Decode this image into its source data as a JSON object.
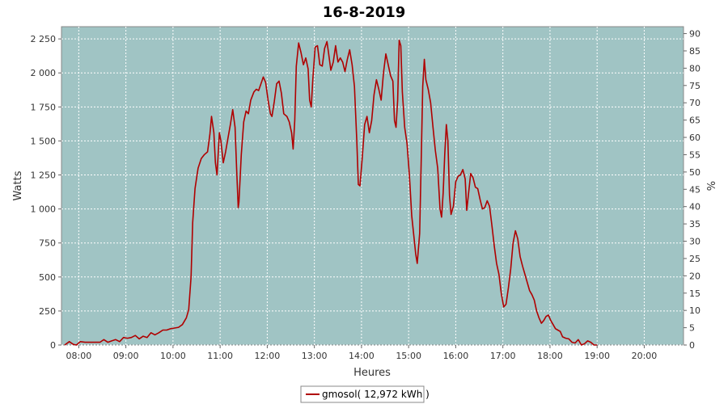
{
  "chart_data": {
    "type": "line",
    "title": "16-8-2019",
    "xlabel": "Heures",
    "ylabel": "Watts",
    "y2label": "%",
    "x_ticks": [
      "08:00",
      "09:00",
      "10:00",
      "11:00",
      "12:00",
      "13:00",
      "14:00",
      "15:00",
      "16:00",
      "17:00",
      "18:00",
      "19:00",
      "20:00"
    ],
    "y_ticks": [
      "0",
      "250",
      "500",
      "750",
      "1 000",
      "1 250",
      "1 500",
      "1 750",
      "2 000",
      "2 250"
    ],
    "y2_ticks": [
      "0",
      "5",
      "10",
      "15",
      "20",
      "25",
      "30",
      "35",
      "40",
      "45",
      "50",
      "55",
      "60",
      "65",
      "70",
      "75",
      "80",
      "85",
      "90"
    ],
    "xlim": [
      "07:38",
      "20:50"
    ],
    "ylim": [
      0,
      2340
    ],
    "y2lim": [
      0,
      92
    ],
    "grid": true,
    "legend_position": "bottom-center",
    "colors": {
      "plot_bg": "#a0c4c4",
      "line": "#b00000",
      "grid": "#ffffff"
    },
    "series": [
      {
        "name": "gmosol( 12,972 kWh )",
        "points": [
          [
            "07:42",
            0
          ],
          [
            "07:48",
            25
          ],
          [
            "07:53",
            5
          ],
          [
            "07:57",
            0
          ],
          [
            "08:02",
            25
          ],
          [
            "08:08",
            20
          ],
          [
            "08:15",
            20
          ],
          [
            "08:22",
            20
          ],
          [
            "08:27",
            20
          ],
          [
            "08:32",
            40
          ],
          [
            "08:37",
            20
          ],
          [
            "08:42",
            30
          ],
          [
            "08:47",
            40
          ],
          [
            "08:52",
            25
          ],
          [
            "08:57",
            55
          ],
          [
            "09:02",
            50
          ],
          [
            "09:07",
            55
          ],
          [
            "09:12",
            70
          ],
          [
            "09:17",
            45
          ],
          [
            "09:22",
            65
          ],
          [
            "09:27",
            55
          ],
          [
            "09:32",
            90
          ],
          [
            "09:37",
            75
          ],
          [
            "09:42",
            90
          ],
          [
            "09:47",
            110
          ],
          [
            "09:52",
            110
          ],
          [
            "09:57",
            120
          ],
          [
            "10:02",
            125
          ],
          [
            "10:07",
            130
          ],
          [
            "10:12",
            150
          ],
          [
            "10:17",
            200
          ],
          [
            "10:20",
            260
          ],
          [
            "10:23",
            500
          ],
          [
            "10:25",
            900
          ],
          [
            "10:28",
            1150
          ],
          [
            "10:32",
            1300
          ],
          [
            "10:36",
            1370
          ],
          [
            "10:40",
            1400
          ],
          [
            "10:44",
            1420
          ],
          [
            "10:47",
            1550
          ],
          [
            "10:49",
            1680
          ],
          [
            "10:52",
            1560
          ],
          [
            "10:54",
            1340
          ],
          [
            "10:56",
            1250
          ],
          [
            "10:59",
            1560
          ],
          [
            "11:01",
            1500
          ],
          [
            "11:04",
            1340
          ],
          [
            "11:07",
            1420
          ],
          [
            "11:10",
            1520
          ],
          [
            "11:13",
            1620
          ],
          [
            "11:16",
            1730
          ],
          [
            "11:19",
            1600
          ],
          [
            "11:21",
            1300
          ],
          [
            "11:23",
            1010
          ],
          [
            "11:24",
            1050
          ],
          [
            "11:27",
            1400
          ],
          [
            "11:30",
            1640
          ],
          [
            "11:33",
            1720
          ],
          [
            "11:36",
            1700
          ],
          [
            "11:39",
            1800
          ],
          [
            "11:43",
            1860
          ],
          [
            "11:46",
            1880
          ],
          [
            "11:49",
            1870
          ],
          [
            "11:52",
            1920
          ],
          [
            "11:55",
            1970
          ],
          [
            "11:58",
            1930
          ],
          [
            "12:01",
            1800
          ],
          [
            "12:04",
            1700
          ],
          [
            "12:06",
            1680
          ],
          [
            "12:09",
            1790
          ],
          [
            "12:12",
            1920
          ],
          [
            "12:15",
            1940
          ],
          [
            "12:18",
            1850
          ],
          [
            "12:21",
            1700
          ],
          [
            "12:25",
            1680
          ],
          [
            "12:28",
            1640
          ],
          [
            "12:31",
            1560
          ],
          [
            "12:33",
            1440
          ],
          [
            "12:35",
            1650
          ],
          [
            "12:37",
            2050
          ],
          [
            "12:40",
            2220
          ],
          [
            "12:43",
            2150
          ],
          [
            "12:46",
            2060
          ],
          [
            "12:49",
            2110
          ],
          [
            "12:52",
            2030
          ],
          [
            "12:54",
            1800
          ],
          [
            "12:56",
            1750
          ],
          [
            "12:58",
            1950
          ],
          [
            "13:01",
            2190
          ],
          [
            "13:04",
            2200
          ],
          [
            "13:07",
            2060
          ],
          [
            "13:10",
            2050
          ],
          [
            "13:13",
            2180
          ],
          [
            "13:16",
            2230
          ],
          [
            "13:18",
            2150
          ],
          [
            "13:21",
            2020
          ],
          [
            "13:24",
            2080
          ],
          [
            "13:27",
            2200
          ],
          [
            "13:30",
            2080
          ],
          [
            "13:33",
            2110
          ],
          [
            "13:36",
            2080
          ],
          [
            "13:39",
            2010
          ],
          [
            "13:42",
            2100
          ],
          [
            "13:45",
            2170
          ],
          [
            "13:48",
            2060
          ],
          [
            "13:51",
            1900
          ],
          [
            "13:54",
            1500
          ],
          [
            "13:56",
            1180
          ],
          [
            "13:58",
            1170
          ],
          [
            "14:01",
            1380
          ],
          [
            "14:04",
            1620
          ],
          [
            "14:07",
            1680
          ],
          [
            "14:10",
            1560
          ],
          [
            "14:13",
            1650
          ],
          [
            "14:16",
            1840
          ],
          [
            "14:19",
            1950
          ],
          [
            "14:22",
            1880
          ],
          [
            "14:25",
            1800
          ],
          [
            "14:28",
            2000
          ],
          [
            "14:31",
            2140
          ],
          [
            "14:34",
            2060
          ],
          [
            "14:37",
            1980
          ],
          [
            "14:40",
            1940
          ],
          [
            "14:42",
            1650
          ],
          [
            "14:44",
            1600
          ],
          [
            "14:46",
            1800
          ],
          [
            "14:48",
            2240
          ],
          [
            "14:50",
            2200
          ],
          [
            "14:52",
            1860
          ],
          [
            "14:55",
            1600
          ],
          [
            "14:58",
            1480
          ],
          [
            "15:01",
            1250
          ],
          [
            "15:04",
            950
          ],
          [
            "15:07",
            780
          ],
          [
            "15:09",
            670
          ],
          [
            "15:11",
            600
          ],
          [
            "15:14",
            820
          ],
          [
            "15:16",
            1350
          ],
          [
            "15:18",
            1900
          ],
          [
            "15:20",
            2100
          ],
          [
            "15:22",
            1950
          ],
          [
            "15:25",
            1880
          ],
          [
            "15:28",
            1780
          ],
          [
            "15:31",
            1600
          ],
          [
            "15:34",
            1430
          ],
          [
            "15:37",
            1300
          ],
          [
            "15:40",
            1000
          ],
          [
            "15:42",
            940
          ],
          [
            "15:44",
            1120
          ],
          [
            "15:46",
            1400
          ],
          [
            "15:48",
            1620
          ],
          [
            "15:50",
            1500
          ],
          [
            "15:52",
            1100
          ],
          [
            "15:54",
            960
          ],
          [
            "15:57",
            1020
          ],
          [
            "16:00",
            1200
          ],
          [
            "16:03",
            1240
          ],
          [
            "16:06",
            1250
          ],
          [
            "16:09",
            1290
          ],
          [
            "16:12",
            1220
          ],
          [
            "16:14",
            990
          ],
          [
            "16:16",
            1100
          ],
          [
            "16:19",
            1260
          ],
          [
            "16:22",
            1230
          ],
          [
            "16:25",
            1160
          ],
          [
            "16:28",
            1150
          ],
          [
            "16:31",
            1070
          ],
          [
            "16:34",
            1000
          ],
          [
            "16:37",
            1010
          ],
          [
            "16:40",
            1060
          ],
          [
            "16:43",
            1020
          ],
          [
            "16:46",
            880
          ],
          [
            "16:49",
            730
          ],
          [
            "16:52",
            600
          ],
          [
            "16:55",
            520
          ],
          [
            "16:58",
            380
          ],
          [
            "17:01",
            280
          ],
          [
            "17:04",
            300
          ],
          [
            "17:07",
            420
          ],
          [
            "17:10",
            560
          ],
          [
            "17:13",
            750
          ],
          [
            "17:16",
            840
          ],
          [
            "17:19",
            780
          ],
          [
            "17:22",
            650
          ],
          [
            "17:25",
            580
          ],
          [
            "17:28",
            520
          ],
          [
            "17:31",
            460
          ],
          [
            "17:34",
            400
          ],
          [
            "17:37",
            370
          ],
          [
            "17:40",
            330
          ],
          [
            "17:43",
            250
          ],
          [
            "17:46",
            200
          ],
          [
            "17:49",
            160
          ],
          [
            "17:52",
            180
          ],
          [
            "17:55",
            210
          ],
          [
            "17:58",
            220
          ],
          [
            "18:01",
            180
          ],
          [
            "18:04",
            150
          ],
          [
            "18:07",
            120
          ],
          [
            "18:10",
            110
          ],
          [
            "18:13",
            100
          ],
          [
            "18:16",
            60
          ],
          [
            "18:20",
            50
          ],
          [
            "18:24",
            45
          ],
          [
            "18:28",
            20
          ],
          [
            "18:32",
            15
          ],
          [
            "18:36",
            40
          ],
          [
            "18:40",
            0
          ],
          [
            "18:44",
            10
          ],
          [
            "18:48",
            30
          ],
          [
            "18:52",
            20
          ],
          [
            "18:56",
            0
          ],
          [
            "19:00",
            0
          ]
        ]
      }
    ]
  }
}
